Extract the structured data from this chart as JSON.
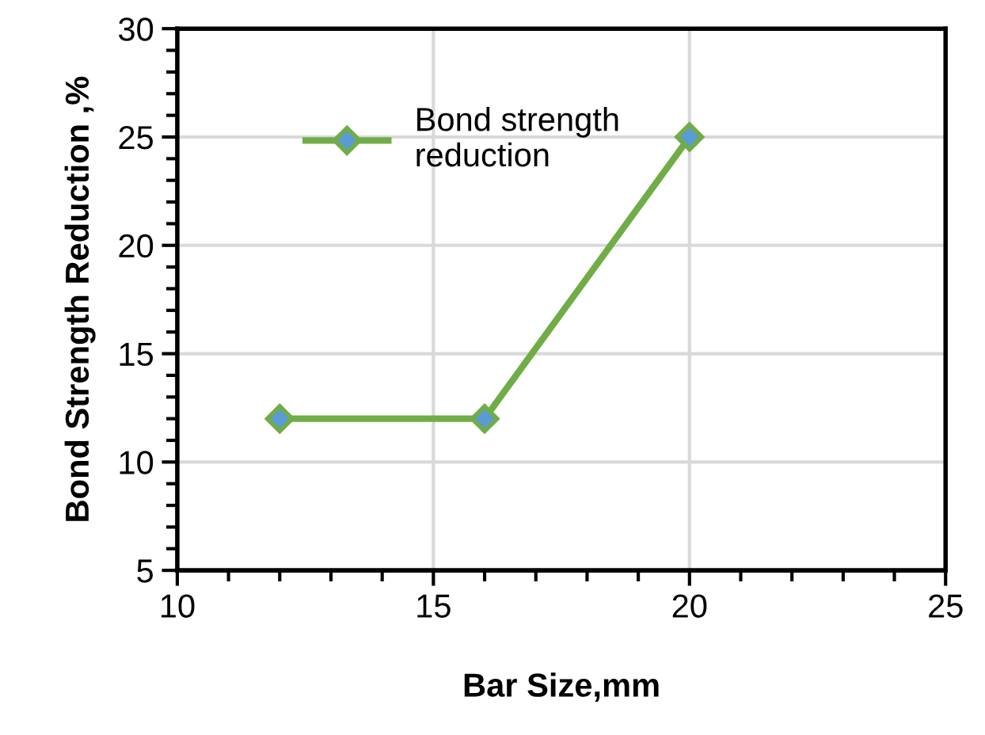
{
  "chart_data": {
    "type": "line",
    "xlabel": "Bar Size,mm",
    "ylabel": "Bond Strength Reduction ,%",
    "x": [
      12,
      16,
      20
    ],
    "series": [
      {
        "name": "Bond strength\nreduction",
        "color": "#70ad47",
        "values": [
          12,
          12,
          25
        ]
      }
    ],
    "xlim": [
      10,
      25
    ],
    "xticks": [
      10,
      15,
      20,
      25
    ],
    "ylim": [
      5,
      30
    ],
    "yticks": [
      5,
      10,
      15,
      20,
      25,
      30
    ],
    "grid": true,
    "legend": "top left",
    "marker": "diamond",
    "line_style": "solid"
  }
}
